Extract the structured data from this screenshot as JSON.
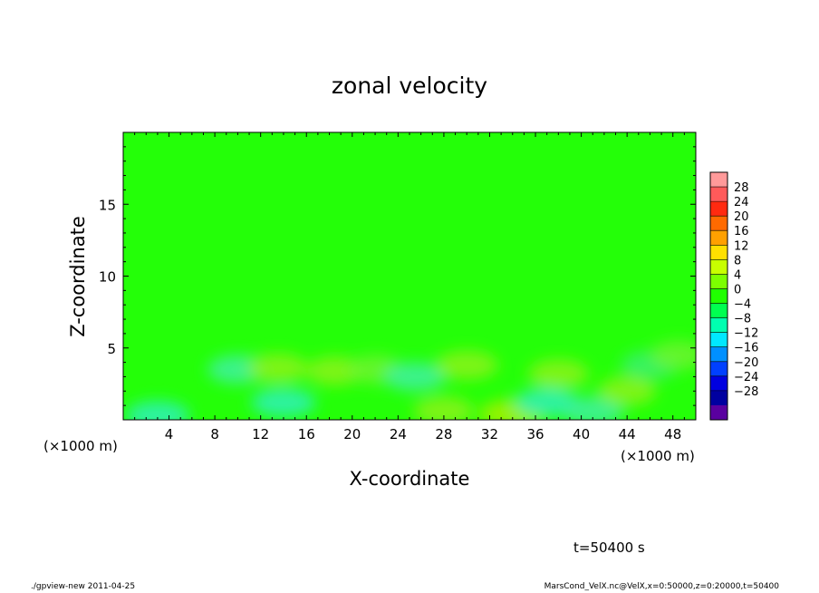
{
  "chart_data": {
    "type": "heatmap",
    "title": "zonal velocity",
    "xlabel": "X-coordinate",
    "ylabel": "Z-coordinate",
    "x_unit_label": "(×1000 m)",
    "y_unit_label": "(×1000 m)",
    "xlim": [
      0,
      50
    ],
    "ylim": [
      0,
      20
    ],
    "x_ticks": [
      4,
      8,
      12,
      16,
      20,
      24,
      28,
      32,
      36,
      40,
      44,
      48
    ],
    "y_ticks": [
      5,
      10,
      15
    ],
    "colorbar": {
      "levels": [
        28,
        24,
        20,
        16,
        12,
        8,
        4,
        0,
        -4,
        -8,
        -12,
        -16,
        -20,
        -24,
        -28
      ],
      "colors": [
        "#ff9a9a",
        "#ff5a5a",
        "#ff2a10",
        "#ff6a00",
        "#ffa000",
        "#ffe000",
        "#c8ff00",
        "#7cff00",
        "#20ff00",
        "#00ff50",
        "#00ffb0",
        "#00e8ff",
        "#0090ff",
        "#0040ff",
        "#0000e0",
        "#0000a0",
        "#5a00a0"
      ]
    },
    "time_label": "t=50400 s",
    "field_summary": {
      "dominant_range": [
        -4,
        4
      ],
      "anomalies": [
        {
          "x": 3,
          "z": 0.3,
          "value": -8
        },
        {
          "x": 10,
          "z": 3.5,
          "value": -6
        },
        {
          "x": 13.5,
          "z": 3.6,
          "value": 6
        },
        {
          "x": 14,
          "z": 1.2,
          "value": -8
        },
        {
          "x": 18.5,
          "z": 3.4,
          "value": 5
        },
        {
          "x": 22,
          "z": 3.5,
          "value": 4
        },
        {
          "x": 25.5,
          "z": 3.0,
          "value": -7
        },
        {
          "x": 30,
          "z": 3.8,
          "value": 7
        },
        {
          "x": 28,
          "z": 0.6,
          "value": 6
        },
        {
          "x": 34,
          "z": 0.4,
          "value": 9
        },
        {
          "x": 38,
          "z": 3.2,
          "value": 6
        },
        {
          "x": 37,
          "z": 1.2,
          "value": -8
        },
        {
          "x": 41,
          "z": 0.6,
          "value": -7
        },
        {
          "x": 44,
          "z": 2.0,
          "value": 5
        },
        {
          "x": 46,
          "z": 3.8,
          "value": -5
        },
        {
          "x": 48.5,
          "z": 4.5,
          "value": 4
        }
      ]
    }
  },
  "footer": {
    "left": "./gpview-new   2011-04-25",
    "right": "MarsCond_VelX.nc@VelX,x=0:50000,z=0:20000,t=50400"
  }
}
